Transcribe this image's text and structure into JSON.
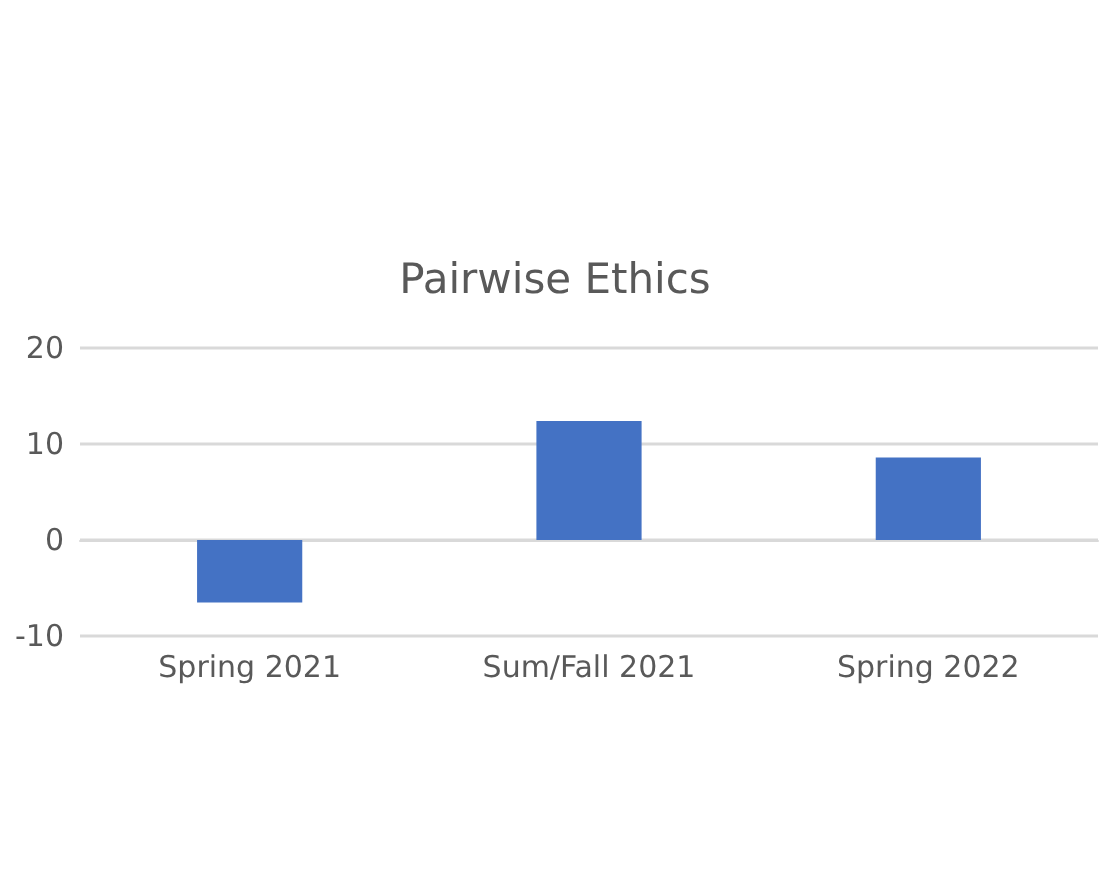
{
  "chart_data": {
    "type": "bar",
    "title": "Pairwise Ethics",
    "categories": [
      "Spring 2021",
      "Sum/Fall 2021",
      "Spring 2022"
    ],
    "values": [
      -6.5,
      12.4,
      8.6
    ],
    "color": "#4472c4",
    "ylim": [
      -10,
      20
    ],
    "yticks": [
      -10,
      0,
      10,
      20
    ],
    "grid": "y"
  }
}
